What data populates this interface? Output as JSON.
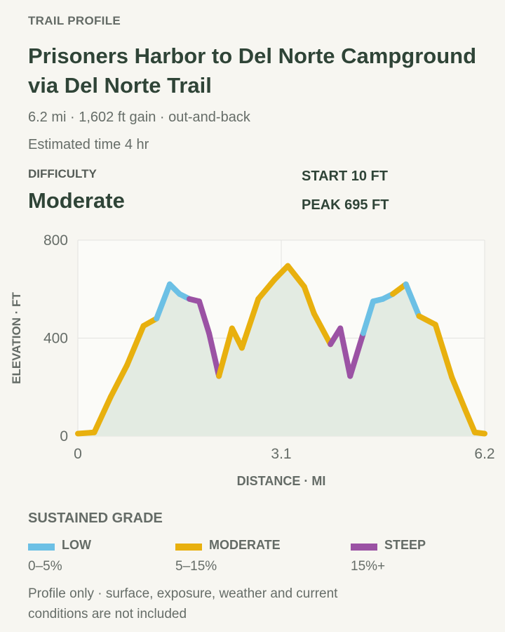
{
  "header": {
    "eyebrow": "TRAIL PROFILE",
    "title": "Prisoners Harbor to Del Norte Campground via Del Norte Trail",
    "stats": "6.2 mi · 1,602 ft gain · out-and-back",
    "time": "Estimated time 4 hr"
  },
  "difficulty": {
    "label": "DIFFICULTY",
    "value": "Moderate"
  },
  "summary": {
    "start": "START 10 FT",
    "peak": "PEAK 695 FT"
  },
  "colors": {
    "low": "#6cc0e5",
    "moderate": "#e8b00e",
    "steep": "#9b52a4",
    "fill": "#e3ebe2",
    "grid": "#e3e3e0"
  },
  "chart_data": {
    "type": "area",
    "xlabel": "DISTANCE · MI",
    "ylabel": "ELEVATION · FT",
    "xlim": [
      0,
      6.2
    ],
    "ylim": [
      0,
      800
    ],
    "x_ticks": [
      0,
      3.1,
      6.2
    ],
    "x_tick_labels": [
      "0",
      "3.1",
      "6.2"
    ],
    "y_ticks": [
      0,
      400,
      800
    ],
    "y_tick_labels": [
      "0",
      "400",
      "800"
    ],
    "grid": true,
    "points": [
      {
        "x": 0.0,
        "y": 10,
        "grade": "moderate"
      },
      {
        "x": 0.25,
        "y": 15,
        "grade": "moderate"
      },
      {
        "x": 0.5,
        "y": 160,
        "grade": "moderate"
      },
      {
        "x": 0.75,
        "y": 290,
        "grade": "moderate"
      },
      {
        "x": 1.0,
        "y": 450,
        "grade": "moderate"
      },
      {
        "x": 1.2,
        "y": 480,
        "grade": "moderate"
      },
      {
        "x": 1.4,
        "y": 620,
        "grade": "low"
      },
      {
        "x": 1.55,
        "y": 580,
        "grade": "low"
      },
      {
        "x": 1.7,
        "y": 560,
        "grade": "low"
      },
      {
        "x": 1.85,
        "y": 550,
        "grade": "steep"
      },
      {
        "x": 2.0,
        "y": 420,
        "grade": "steep"
      },
      {
        "x": 2.15,
        "y": 245,
        "grade": "steep"
      },
      {
        "x": 2.35,
        "y": 440,
        "grade": "moderate"
      },
      {
        "x": 2.5,
        "y": 360,
        "grade": "moderate"
      },
      {
        "x": 2.75,
        "y": 560,
        "grade": "moderate"
      },
      {
        "x": 3.0,
        "y": 640,
        "grade": "moderate"
      },
      {
        "x": 3.2,
        "y": 695,
        "grade": "moderate"
      },
      {
        "x": 3.45,
        "y": 610,
        "grade": "moderate"
      },
      {
        "x": 3.6,
        "y": 500,
        "grade": "moderate"
      },
      {
        "x": 3.85,
        "y": 375,
        "grade": "moderate"
      },
      {
        "x": 4.0,
        "y": 440,
        "grade": "steep"
      },
      {
        "x": 4.15,
        "y": 245,
        "grade": "steep"
      },
      {
        "x": 4.35,
        "y": 420,
        "grade": "steep"
      },
      {
        "x": 4.5,
        "y": 550,
        "grade": "low"
      },
      {
        "x": 4.65,
        "y": 560,
        "grade": "low"
      },
      {
        "x": 4.8,
        "y": 580,
        "grade": "low"
      },
      {
        "x": 5.0,
        "y": 620,
        "grade": "moderate"
      },
      {
        "x": 5.2,
        "y": 490,
        "grade": "low"
      },
      {
        "x": 5.45,
        "y": 455,
        "grade": "moderate"
      },
      {
        "x": 5.7,
        "y": 240,
        "grade": "moderate"
      },
      {
        "x": 5.9,
        "y": 110,
        "grade": "moderate"
      },
      {
        "x": 6.05,
        "y": 15,
        "grade": "moderate"
      },
      {
        "x": 6.2,
        "y": 10,
        "grade": "moderate"
      }
    ]
  },
  "legend": {
    "title": "SUSTAINED GRADE",
    "items": [
      {
        "name": "LOW",
        "range": "0–5%",
        "color": "#6cc0e5"
      },
      {
        "name": "MODERATE",
        "range": "5–15%",
        "color": "#e8b00e"
      },
      {
        "name": "STEEP",
        "range": "15%+",
        "color": "#9b52a4"
      }
    ]
  },
  "note": "Profile only · surface, exposure, weather and current conditions are not included"
}
